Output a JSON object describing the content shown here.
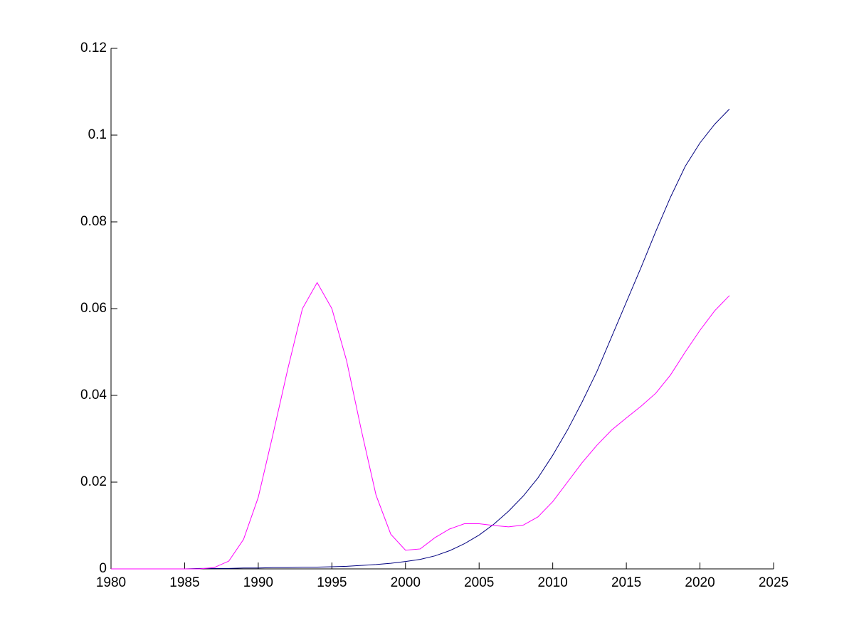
{
  "chart_data": {
    "type": "line",
    "x": [
      1980,
      1981,
      1982,
      1983,
      1984,
      1985,
      1986,
      1987,
      1988,
      1989,
      1990,
      1991,
      1992,
      1993,
      1994,
      1995,
      1996,
      1997,
      1998,
      1999,
      2000,
      2001,
      2002,
      2003,
      2004,
      2005,
      2006,
      2007,
      2008,
      2009,
      2010,
      2011,
      2012,
      2013,
      2014,
      2015,
      2016,
      2017,
      2018,
      2019,
      2020,
      2021,
      2022
    ],
    "series": [
      {
        "color": "#00007f",
        "values": [
          0,
          0,
          0,
          0,
          0,
          0,
          0.0001,
          0.0001,
          0.0001,
          0.0002,
          0.0002,
          0.0003,
          0.0003,
          0.0004,
          0.0004,
          0.0005,
          0.0006,
          0.0008,
          0.001,
          0.0013,
          0.0017,
          0.0022,
          0.003,
          0.0042,
          0.0058,
          0.0078,
          0.0103,
          0.0133,
          0.0168,
          0.021,
          0.0262,
          0.032,
          0.0385,
          0.0455,
          0.0535,
          0.0615,
          0.0695,
          0.0778,
          0.0857,
          0.0928,
          0.0982,
          0.1025,
          0.106
        ]
      },
      {
        "color": "#ff00ff",
        "values": [
          0,
          0,
          0,
          0,
          0,
          0,
          0,
          0.0003,
          0.0018,
          0.0068,
          0.0165,
          0.031,
          0.046,
          0.06,
          0.066,
          0.06,
          0.048,
          0.032,
          0.017,
          0.008,
          0.0043,
          0.0046,
          0.0072,
          0.0092,
          0.0104,
          0.0104,
          0.01,
          0.0097,
          0.0101,
          0.012,
          0.0155,
          0.02,
          0.0245,
          0.0285,
          0.032,
          0.0348,
          0.0375,
          0.0405,
          0.0447,
          0.05,
          0.055,
          0.0595,
          0.063
        ]
      }
    ],
    "xlim": [
      1980,
      2025
    ],
    "xticks": [
      1980,
      1985,
      1990,
      1995,
      2000,
      2005,
      2010,
      2015,
      2020,
      2025
    ],
    "ylim": [
      0,
      0.12
    ],
    "yticks": [
      0,
      0.02,
      0.04,
      0.06,
      0.08,
      0.1,
      0.12
    ],
    "grid": false
  }
}
